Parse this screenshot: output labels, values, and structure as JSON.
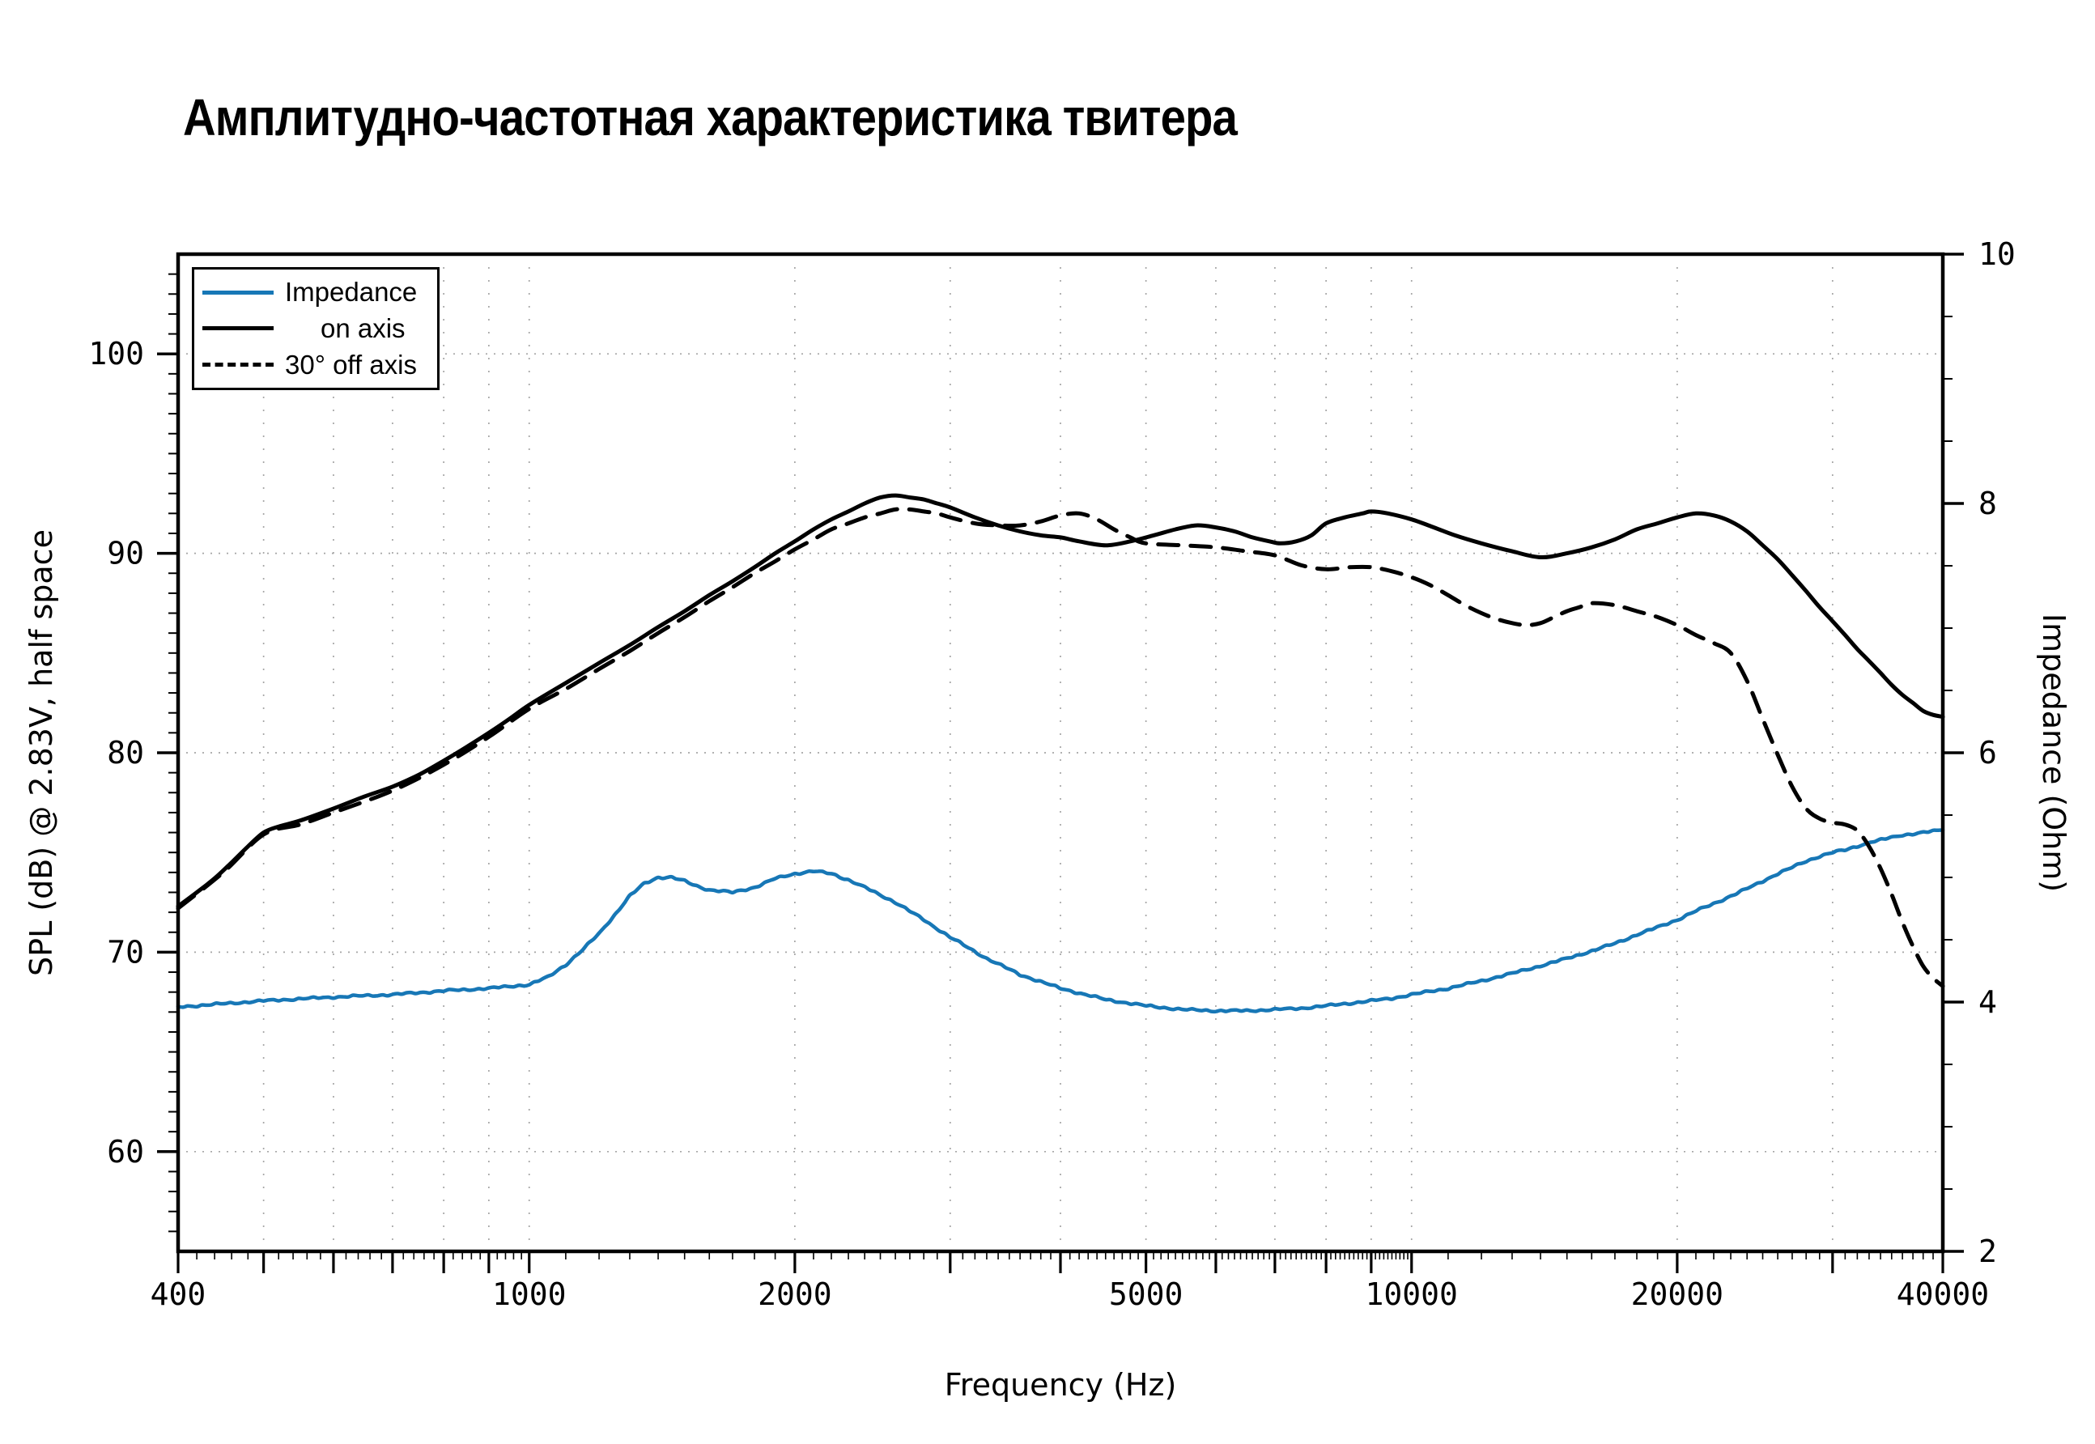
{
  "title": "Амплитудно-частотная характеристика твитера",
  "colors": {
    "impedance_line": "#1777b6",
    "spl_line": "#000000",
    "grid": "#a6a6a6",
    "frame": "#000000",
    "background": "#ffffff"
  },
  "chart_data": {
    "type": "line",
    "title": "Амплитудно-частотная характеристика твитера",
    "xlabel": "Frequency (Hz)",
    "ylabel_left": "SPL (dB) @ 2.83V, half space",
    "ylabel_right": "Impedance (Ohm)",
    "x_scale": "log",
    "x_range": [
      400,
      40000
    ],
    "y_left_range": [
      55,
      105
    ],
    "y_right_range": [
      2,
      10
    ],
    "x_tick_labels": [
      400,
      1000,
      2000,
      5000,
      10000,
      20000,
      40000
    ],
    "x_grid": [
      500,
      600,
      700,
      800,
      900,
      1000,
      2000,
      3000,
      4000,
      5000,
      6000,
      7000,
      8000,
      9000,
      10000,
      20000,
      30000
    ],
    "y_left_ticks": [
      60,
      70,
      80,
      90,
      100
    ],
    "y_right_ticks": [
      2,
      4,
      6,
      8,
      10
    ],
    "grid_on": true,
    "legend_position": "top-left",
    "legend_entries": [
      "Impedance",
      "on axis",
      "30° off axis"
    ],
    "series": [
      {
        "name": "Impedance",
        "axis": "right",
        "style": "solid",
        "color": "#1777b6",
        "noisy": true,
        "points": [
          [
            400,
            3.96
          ],
          [
            500,
            4.01
          ],
          [
            600,
            4.04
          ],
          [
            700,
            4.06
          ],
          [
            800,
            4.09
          ],
          [
            900,
            4.11
          ],
          [
            1000,
            4.14
          ],
          [
            1050,
            4.2
          ],
          [
            1100,
            4.3
          ],
          [
            1150,
            4.42
          ],
          [
            1200,
            4.55
          ],
          [
            1250,
            4.7
          ],
          [
            1300,
            4.85
          ],
          [
            1350,
            4.95
          ],
          [
            1400,
            5.0
          ],
          [
            1450,
            5.0
          ],
          [
            1500,
            4.97
          ],
          [
            1550,
            4.93
          ],
          [
            1600,
            4.9
          ],
          [
            1700,
            4.88
          ],
          [
            1800,
            4.92
          ],
          [
            1900,
            4.99
          ],
          [
            2000,
            5.03
          ],
          [
            2100,
            5.05
          ],
          [
            2200,
            5.03
          ],
          [
            2300,
            4.98
          ],
          [
            2400,
            4.92
          ],
          [
            2600,
            4.8
          ],
          [
            2800,
            4.66
          ],
          [
            3000,
            4.52
          ],
          [
            3300,
            4.35
          ],
          [
            3600,
            4.22
          ],
          [
            4000,
            4.11
          ],
          [
            4500,
            4.02
          ],
          [
            5000,
            3.97
          ],
          [
            5500,
            3.94
          ],
          [
            6000,
            3.93
          ],
          [
            6500,
            3.93
          ],
          [
            7000,
            3.94
          ],
          [
            7500,
            3.95
          ],
          [
            8000,
            3.97
          ],
          [
            8500,
            3.99
          ],
          [
            9000,
            4.01
          ],
          [
            9500,
            4.03
          ],
          [
            10000,
            4.06
          ],
          [
            11000,
            4.11
          ],
          [
            12000,
            4.17
          ],
          [
            13000,
            4.23
          ],
          [
            14000,
            4.29
          ],
          [
            15000,
            4.35
          ],
          [
            16000,
            4.41
          ],
          [
            17000,
            4.47
          ],
          [
            18000,
            4.54
          ],
          [
            19000,
            4.6
          ],
          [
            20000,
            4.66
          ],
          [
            21000,
            4.73
          ],
          [
            22000,
            4.79
          ],
          [
            23000,
            4.85
          ],
          [
            24000,
            4.91
          ],
          [
            25000,
            4.97
          ],
          [
            26000,
            5.03
          ],
          [
            27000,
            5.08
          ],
          [
            28000,
            5.13
          ],
          [
            29000,
            5.17
          ],
          [
            30000,
            5.2
          ],
          [
            31000,
            5.22
          ],
          [
            32000,
            5.25
          ],
          [
            33000,
            5.28
          ],
          [
            34000,
            5.3
          ],
          [
            35000,
            5.32
          ],
          [
            36000,
            5.34
          ],
          [
            37000,
            5.35
          ],
          [
            38000,
            5.36
          ],
          [
            39000,
            5.37
          ],
          [
            40000,
            5.38
          ]
        ]
      },
      {
        "name": "on axis",
        "axis": "left",
        "style": "solid",
        "color": "#000000",
        "noisy": false,
        "points": [
          [
            400,
            72.3
          ],
          [
            420,
            73.0
          ],
          [
            440,
            73.7
          ],
          [
            460,
            74.5
          ],
          [
            480,
            75.3
          ],
          [
            500,
            76.0
          ],
          [
            520,
            76.3
          ],
          [
            550,
            76.6
          ],
          [
            600,
            77.2
          ],
          [
            650,
            77.8
          ],
          [
            700,
            78.3
          ],
          [
            750,
            78.9
          ],
          [
            800,
            79.6
          ],
          [
            850,
            80.3
          ],
          [
            900,
            81.0
          ],
          [
            950,
            81.7
          ],
          [
            1000,
            82.4
          ],
          [
            1100,
            83.5
          ],
          [
            1200,
            84.5
          ],
          [
            1300,
            85.4
          ],
          [
            1400,
            86.3
          ],
          [
            1500,
            87.1
          ],
          [
            1600,
            87.9
          ],
          [
            1700,
            88.6
          ],
          [
            1800,
            89.3
          ],
          [
            1900,
            90.0
          ],
          [
            2000,
            90.6
          ],
          [
            2100,
            91.2
          ],
          [
            2200,
            91.7
          ],
          [
            2300,
            92.1
          ],
          [
            2400,
            92.5
          ],
          [
            2500,
            92.8
          ],
          [
            2600,
            92.9
          ],
          [
            2700,
            92.8
          ],
          [
            2800,
            92.7
          ],
          [
            2900,
            92.5
          ],
          [
            3000,
            92.3
          ],
          [
            3200,
            91.8
          ],
          [
            3400,
            91.4
          ],
          [
            3600,
            91.1
          ],
          [
            3800,
            90.9
          ],
          [
            4000,
            90.8
          ],
          [
            4200,
            90.6
          ],
          [
            4500,
            90.4
          ],
          [
            4800,
            90.6
          ],
          [
            5100,
            90.9
          ],
          [
            5400,
            91.2
          ],
          [
            5700,
            91.4
          ],
          [
            6000,
            91.3
          ],
          [
            6300,
            91.1
          ],
          [
            6600,
            90.8
          ],
          [
            6900,
            90.6
          ],
          [
            7100,
            90.5
          ],
          [
            7400,
            90.6
          ],
          [
            7700,
            90.9
          ],
          [
            8000,
            91.5
          ],
          [
            8400,
            91.8
          ],
          [
            8800,
            92.0
          ],
          [
            9000,
            92.1
          ],
          [
            9400,
            92.0
          ],
          [
            10000,
            91.7
          ],
          [
            10600,
            91.3
          ],
          [
            11200,
            90.9
          ],
          [
            12000,
            90.5
          ],
          [
            13000,
            90.1
          ],
          [
            14000,
            89.8
          ],
          [
            15000,
            90.0
          ],
          [
            16000,
            90.3
          ],
          [
            17000,
            90.7
          ],
          [
            18000,
            91.2
          ],
          [
            19000,
            91.5
          ],
          [
            20000,
            91.8
          ],
          [
            21000,
            92.0
          ],
          [
            22000,
            91.9
          ],
          [
            23000,
            91.6
          ],
          [
            24000,
            91.1
          ],
          [
            25000,
            90.4
          ],
          [
            26000,
            89.7
          ],
          [
            27000,
            88.9
          ],
          [
            28000,
            88.1
          ],
          [
            29000,
            87.3
          ],
          [
            30000,
            86.6
          ],
          [
            31000,
            85.9
          ],
          [
            32000,
            85.2
          ],
          [
            33000,
            84.6
          ],
          [
            34000,
            84.0
          ],
          [
            35000,
            83.4
          ],
          [
            36000,
            82.9
          ],
          [
            37000,
            82.5
          ],
          [
            38000,
            82.1
          ],
          [
            39000,
            81.9
          ],
          [
            40000,
            81.8
          ]
        ]
      },
      {
        "name": "30° off axis",
        "axis": "left",
        "style": "dashed",
        "color": "#000000",
        "noisy": false,
        "points": [
          [
            400,
            72.2
          ],
          [
            450,
            74.0
          ],
          [
            500,
            75.9
          ],
          [
            550,
            76.4
          ],
          [
            600,
            77.0
          ],
          [
            700,
            78.1
          ],
          [
            800,
            79.4
          ],
          [
            900,
            80.8
          ],
          [
            1000,
            82.2
          ],
          [
            1100,
            83.2
          ],
          [
            1200,
            84.2
          ],
          [
            1300,
            85.1
          ],
          [
            1400,
            86.0
          ],
          [
            1500,
            86.8
          ],
          [
            1600,
            87.6
          ],
          [
            1700,
            88.3
          ],
          [
            1800,
            89.0
          ],
          [
            1900,
            89.6
          ],
          [
            2000,
            90.2
          ],
          [
            2100,
            90.7
          ],
          [
            2200,
            91.2
          ],
          [
            2300,
            91.5
          ],
          [
            2400,
            91.8
          ],
          [
            2500,
            92.0
          ],
          [
            2600,
            92.2
          ],
          [
            2700,
            92.2
          ],
          [
            2800,
            92.1
          ],
          [
            2900,
            92.0
          ],
          [
            3000,
            91.8
          ],
          [
            3200,
            91.5
          ],
          [
            3400,
            91.4
          ],
          [
            3600,
            91.4
          ],
          [
            3800,
            91.6
          ],
          [
            4000,
            91.9
          ],
          [
            4200,
            92.0
          ],
          [
            4400,
            91.7
          ],
          [
            4600,
            91.2
          ],
          [
            4800,
            90.8
          ],
          [
            5000,
            90.5
          ],
          [
            5500,
            90.4
          ],
          [
            6000,
            90.3
          ],
          [
            6500,
            90.1
          ],
          [
            7000,
            89.9
          ],
          [
            7500,
            89.4
          ],
          [
            8000,
            89.2
          ],
          [
            8500,
            89.3
          ],
          [
            9000,
            89.3
          ],
          [
            9500,
            89.1
          ],
          [
            10000,
            88.8
          ],
          [
            10500,
            88.4
          ],
          [
            11000,
            87.9
          ],
          [
            11500,
            87.4
          ],
          [
            12000,
            87.0
          ],
          [
            12500,
            86.7
          ],
          [
            13000,
            86.5
          ],
          [
            13500,
            86.4
          ],
          [
            14000,
            86.5
          ],
          [
            14500,
            86.8
          ],
          [
            15000,
            87.1
          ],
          [
            15500,
            87.3
          ],
          [
            16000,
            87.5
          ],
          [
            17000,
            87.4
          ],
          [
            18000,
            87.1
          ],
          [
            19000,
            86.8
          ],
          [
            20000,
            86.4
          ],
          [
            21000,
            85.9
          ],
          [
            22000,
            85.5
          ],
          [
            23000,
            85.0
          ],
          [
            24000,
            83.6
          ],
          [
            25000,
            81.7
          ],
          [
            26000,
            79.9
          ],
          [
            27000,
            78.3
          ],
          [
            28000,
            77.2
          ],
          [
            29000,
            76.7
          ],
          [
            30000,
            76.5
          ],
          [
            31000,
            76.4
          ],
          [
            32000,
            76.1
          ],
          [
            33000,
            75.3
          ],
          [
            34000,
            74.2
          ],
          [
            35000,
            72.9
          ],
          [
            36000,
            71.5
          ],
          [
            37000,
            70.3
          ],
          [
            38000,
            69.3
          ],
          [
            39000,
            68.7
          ],
          [
            40000,
            68.3
          ]
        ]
      }
    ]
  }
}
